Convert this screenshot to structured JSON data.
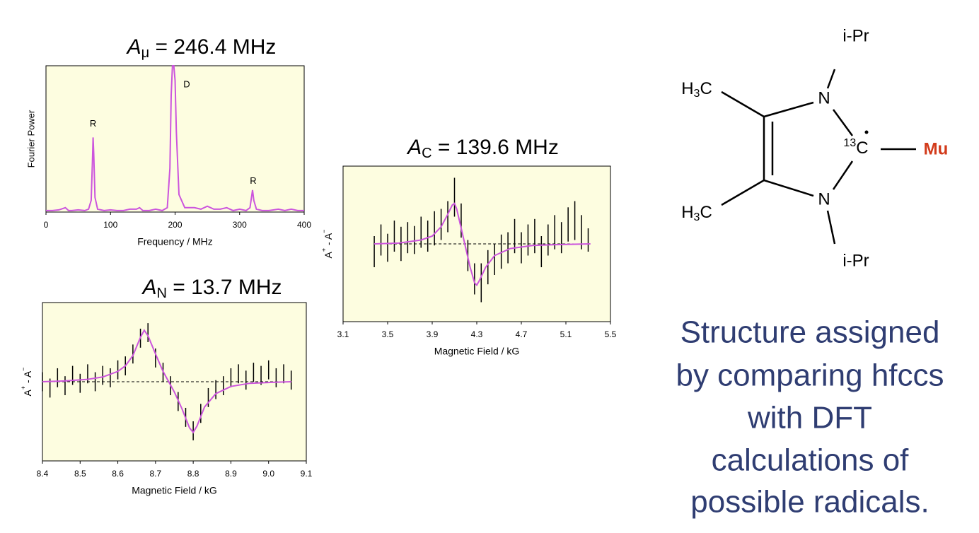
{
  "chart_data": [
    {
      "type": "line",
      "title": [
        "A",
        "μ",
        " = 246.4 MHz"
      ],
      "x_label": "Frequency / MHz",
      "y_label": "Fourier Power",
      "xlim": [
        0,
        400
      ],
      "xticks": [
        0,
        100,
        200,
        300,
        400
      ],
      "ylim": [
        0,
        100
      ],
      "color": "#cc55dd",
      "background": "#fdfde0",
      "x": [
        0,
        10,
        20,
        30,
        35,
        40,
        50,
        60,
        66,
        70,
        72,
        73,
        74,
        76,
        80,
        90,
        100,
        110,
        120,
        130,
        140,
        145,
        150,
        160,
        170,
        180,
        188,
        192,
        194,
        196,
        198,
        200,
        202,
        206,
        215,
        230,
        240,
        250,
        260,
        270,
        280,
        290,
        300,
        310,
        316,
        318,
        320,
        322,
        326,
        335,
        345,
        360,
        370,
        380,
        390,
        400
      ],
      "values": [
        1,
        1,
        1.5,
        3,
        1,
        1,
        1.5,
        1,
        2,
        8,
        35,
        51,
        40,
        10,
        2,
        1,
        1.5,
        1,
        1,
        2,
        2,
        3,
        1,
        1,
        2,
        1,
        3,
        30,
        80,
        100,
        100,
        90,
        55,
        12,
        3,
        3,
        2,
        4,
        2,
        2,
        3,
        1,
        2,
        1,
        3,
        9,
        15,
        8,
        2,
        1,
        1,
        2,
        1,
        2,
        1,
        1
      ],
      "annotations": [
        {
          "text": "R",
          "x": 73,
          "y": 60
        },
        {
          "text": "D",
          "x": 218,
          "y": 87
        },
        {
          "text": "R",
          "x": 321,
          "y": 21
        }
      ]
    },
    {
      "type": "errorbar",
      "title": [
        "A",
        "N",
        " = 13.7 MHz"
      ],
      "x_label": "Magnetic Field / kG",
      "y_label": [
        "A",
        "+",
        " - A",
        "−"
      ],
      "xlim": [
        8.4,
        9.1
      ],
      "xticks": [
        8.4,
        8.5,
        8.6,
        8.7,
        8.8,
        8.9,
        {
          "value": 9,
          "label": "9.0"
        },
        9.1
      ],
      "ylim": [
        -1,
        1
      ],
      "reference_line": 0,
      "color": "#cc55dd",
      "background": "#fdfde0",
      "data": {
        "x": [
          8.4,
          8.42,
          8.44,
          8.46,
          8.48,
          8.5,
          8.52,
          8.54,
          8.56,
          8.58,
          8.6,
          8.62,
          8.64,
          8.66,
          8.68,
          8.7,
          8.72,
          8.74,
          8.76,
          8.78,
          8.8,
          8.82,
          8.84,
          8.86,
          8.88,
          8.9,
          8.92,
          8.94,
          8.96,
          8.98,
          9.0,
          9.02,
          9.04,
          9.06
        ],
        "values": [
          0,
          -0.08,
          0.05,
          -0.05,
          0.08,
          -0.02,
          0.1,
          0,
          0.08,
          0.05,
          0.15,
          0.2,
          0.35,
          0.55,
          0.62,
          0.3,
          0.12,
          -0.05,
          -0.25,
          -0.45,
          -0.62,
          -0.4,
          -0.2,
          -0.1,
          -0.05,
          0.05,
          0.1,
          0.02,
          0.12,
          0.08,
          0.15,
          0.05,
          0.1,
          0.02
        ],
        "errors": [
          0.12,
          0.12,
          0.12,
          0.12,
          0.12,
          0.12,
          0.12,
          0.12,
          0.12,
          0.12,
          0.12,
          0.12,
          0.12,
          0.12,
          0.12,
          0.12,
          0.12,
          0.12,
          0.12,
          0.12,
          0.12,
          0.12,
          0.12,
          0.12,
          0.12,
          0.12,
          0.12,
          0.12,
          0.12,
          0.12,
          0.12,
          0.12,
          0.12,
          0.12
        ]
      },
      "fit": {
        "x": [
          8.4,
          8.46,
          8.52,
          8.56,
          8.6,
          8.62,
          8.64,
          8.66,
          8.67,
          8.68,
          8.7,
          8.72,
          8.735,
          8.75,
          8.77,
          8.79,
          8.8,
          8.81,
          8.83,
          8.86,
          8.9,
          8.95,
          9.0,
          9.06
        ],
        "values": [
          0,
          0.01,
          0.03,
          0.06,
          0.13,
          0.2,
          0.33,
          0.56,
          0.65,
          0.58,
          0.35,
          0.13,
          0,
          -0.13,
          -0.34,
          -0.58,
          -0.64,
          -0.56,
          -0.32,
          -0.15,
          -0.06,
          -0.02,
          -0.01,
          0
        ]
      }
    },
    {
      "type": "errorbar",
      "title": [
        "A",
        "C",
        " = 139.6 MHz"
      ],
      "x_label": "Magnetic Field / kG",
      "y_label": [
        "A",
        "+",
        " - A",
        "−"
      ],
      "xlim": [
        3.1,
        5.5
      ],
      "xticks": [
        3.1,
        3.5,
        3.9,
        4.3,
        4.7,
        5.1,
        5.5
      ],
      "ylim": [
        -1,
        1
      ],
      "reference_line": 0,
      "color": "#cc55dd",
      "background": "#fdfde0",
      "data": {
        "x": [
          3.38,
          3.44,
          3.5,
          3.56,
          3.62,
          3.68,
          3.74,
          3.8,
          3.86,
          3.92,
          3.98,
          4.04,
          4.1,
          4.16,
          4.22,
          4.28,
          4.34,
          4.4,
          4.46,
          4.52,
          4.58,
          4.64,
          4.7,
          4.76,
          4.82,
          4.88,
          4.94,
          5.0,
          5.06,
          5.12,
          5.18,
          5.24,
          5.3
        ],
        "values": [
          -0.1,
          0.05,
          -0.05,
          0.1,
          0,
          0.08,
          0.05,
          0.15,
          0.1,
          0.2,
          0.25,
          0.35,
          0.6,
          0.3,
          -0.15,
          -0.45,
          -0.5,
          -0.3,
          -0.2,
          -0.1,
          -0.05,
          0.1,
          -0.05,
          0.05,
          0.1,
          -0.1,
          0.05,
          0.15,
          0.08,
          0.25,
          0.3,
          0.15,
          0.05
        ],
        "errors": [
          0.2,
          0.2,
          0.18,
          0.2,
          0.22,
          0.2,
          0.18,
          0.2,
          0.2,
          0.22,
          0.2,
          0.2,
          0.25,
          0.22,
          0.2,
          0.2,
          0.25,
          0.22,
          0.2,
          0.22,
          0.2,
          0.22,
          0.2,
          0.2,
          0.22,
          0.2,
          0.2,
          0.22,
          0.2,
          0.22,
          0.25,
          0.22,
          0.15
        ]
      },
      "fit": {
        "x": [
          3.38,
          3.6,
          3.8,
          3.9,
          3.98,
          4.04,
          4.08,
          4.1,
          4.12,
          4.16,
          4.2,
          4.24,
          4.28,
          4.3,
          4.32,
          4.38,
          4.46,
          4.6,
          4.8,
          5.0,
          5.32
        ],
        "values": [
          0,
          0.01,
          0.05,
          0.1,
          0.22,
          0.38,
          0.5,
          0.52,
          0.45,
          0.2,
          -0.05,
          -0.3,
          -0.5,
          -0.53,
          -0.48,
          -0.3,
          -0.15,
          -0.06,
          -0.02,
          -0.01,
          0
        ]
      }
    }
  ],
  "structure": {
    "top_substituent": "i-Pr",
    "methyl_top": [
      "H",
      "3",
      "C"
    ],
    "n_top": "N",
    "carbon": [
      "13",
      "C"
    ],
    "mu": "Mu",
    "n_bottom": "N",
    "methyl_bottom": [
      "H",
      "3",
      "C"
    ],
    "bottom_substituent": "i-Pr"
  },
  "caption": [
    "Structure assigned",
    "by comparing hfccs",
    "with DFT",
    "calculations of",
    "possible radicals."
  ]
}
